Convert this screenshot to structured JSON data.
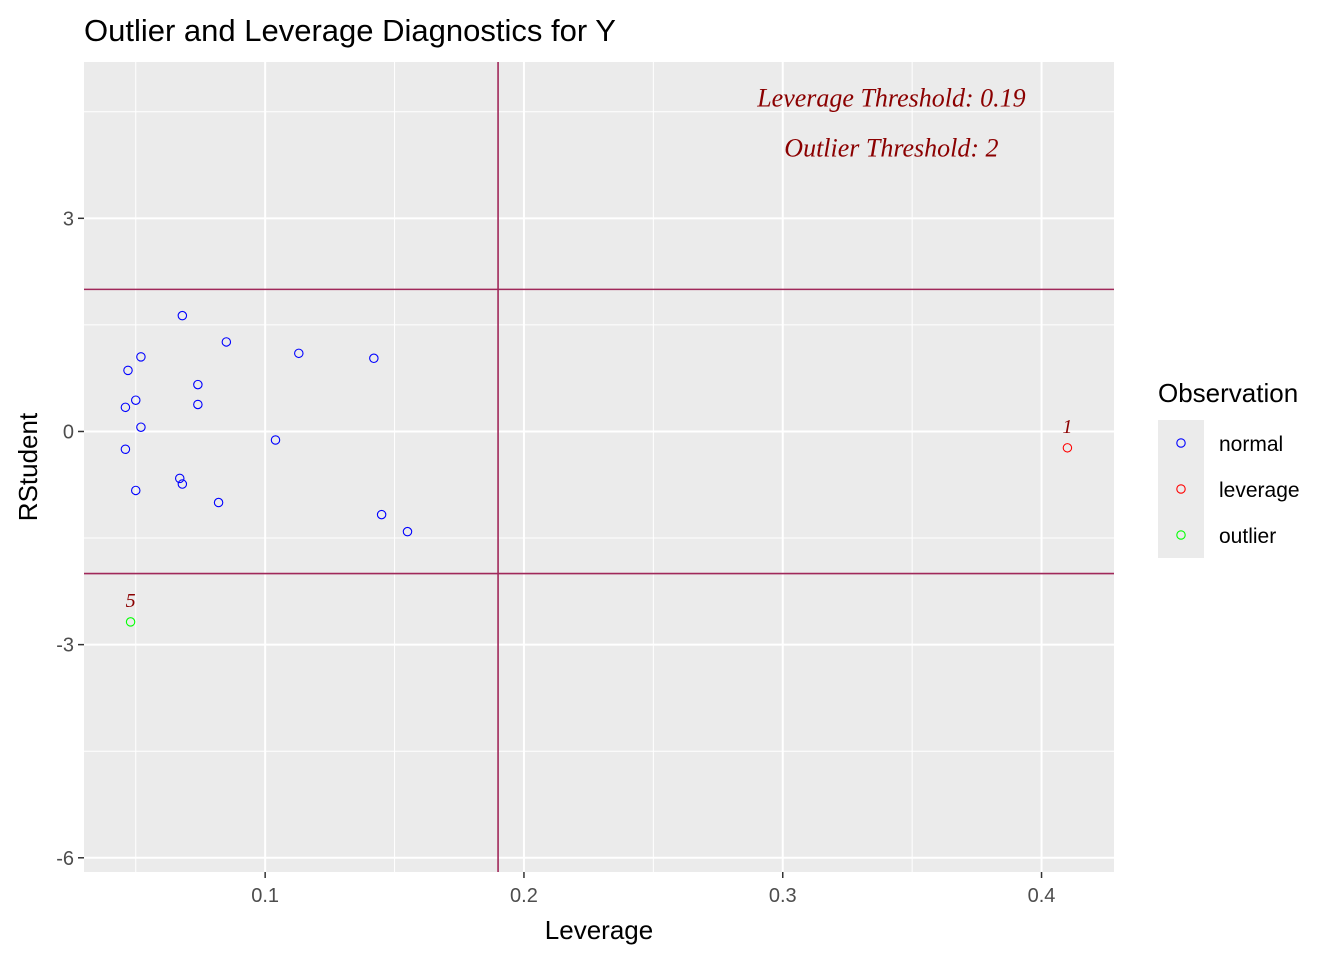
{
  "chart_data": {
    "type": "scatter",
    "title": "Outlier and Leverage Diagnostics for Y",
    "xlabel": "Leverage",
    "ylabel": "RStudent",
    "xlim": [
      0.03,
      0.428
    ],
    "ylim": [
      -6.2,
      5.2
    ],
    "x_ticks": [
      0.1,
      0.2,
      0.3,
      0.4
    ],
    "x_tick_labels": [
      "0.1",
      "0.2",
      "0.3",
      "0.4"
    ],
    "y_ticks": [
      3,
      0,
      -3,
      -6
    ],
    "y_tick_labels": [
      "3",
      "0",
      "-3",
      "-6"
    ],
    "x_minor": [
      0.05,
      0.15,
      0.25,
      0.35
    ],
    "y_minor": [
      4.5,
      1.5,
      -1.5,
      -4.5
    ],
    "grid": true,
    "leverage_threshold": 0.19,
    "outlier_thresholds": [
      2,
      -2
    ],
    "threshold_color": "#A0285A",
    "annotations": [
      {
        "text": "Leverage Threshold: 0.19",
        "x": 0.342,
        "y": 4.7
      },
      {
        "text": "Outlier Threshold: 2",
        "x": 0.342,
        "y": 4.0
      }
    ],
    "annotation_color": "#8B0000",
    "legend": {
      "title": "Observation",
      "position": "right",
      "entries": [
        {
          "name": "normal",
          "color": "#0000FF"
        },
        {
          "name": "leverage",
          "color": "#FF0000"
        },
        {
          "name": "outlier",
          "color": "#00FF00"
        }
      ]
    },
    "series": [
      {
        "name": "normal",
        "color": "#0000FF",
        "points": [
          {
            "x": 0.068,
            "y": 1.63
          },
          {
            "x": 0.085,
            "y": 1.26
          },
          {
            "x": 0.052,
            "y": 1.05
          },
          {
            "x": 0.047,
            "y": 0.86
          },
          {
            "x": 0.074,
            "y": 0.66
          },
          {
            "x": 0.05,
            "y": 0.44
          },
          {
            "x": 0.074,
            "y": 0.38
          },
          {
            "x": 0.046,
            "y": 0.34
          },
          {
            "x": 0.052,
            "y": 0.06
          },
          {
            "x": 0.046,
            "y": -0.25
          },
          {
            "x": 0.104,
            "y": -0.12
          },
          {
            "x": 0.113,
            "y": 1.1
          },
          {
            "x": 0.142,
            "y": 1.03
          },
          {
            "x": 0.067,
            "y": -0.66
          },
          {
            "x": 0.068,
            "y": -0.74
          },
          {
            "x": 0.05,
            "y": -0.83
          },
          {
            "x": 0.082,
            "y": -1.0
          },
          {
            "x": 0.145,
            "y": -1.17
          },
          {
            "x": 0.155,
            "y": -1.41
          }
        ]
      },
      {
        "name": "leverage",
        "color": "#FF0000",
        "points": [
          {
            "x": 0.41,
            "y": -0.23,
            "label": "1"
          }
        ]
      },
      {
        "name": "outlier",
        "color": "#00FF00",
        "points": [
          {
            "x": 0.048,
            "y": -2.68,
            "label": "5"
          }
        ]
      }
    ]
  }
}
